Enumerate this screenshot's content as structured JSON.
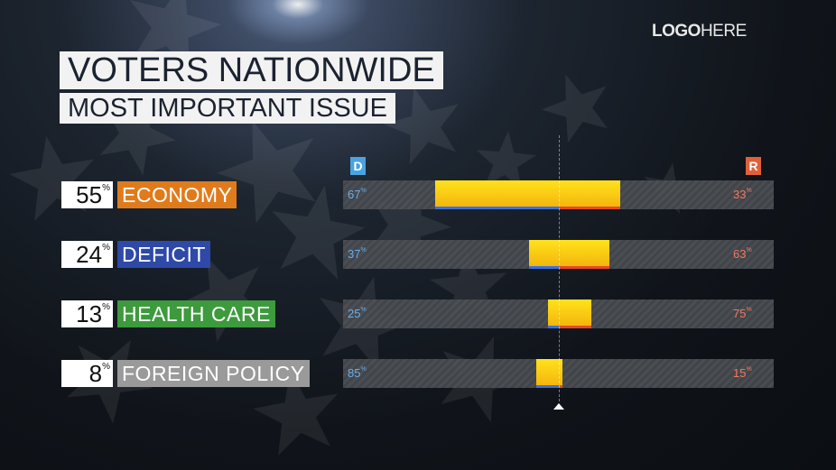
{
  "logo": {
    "part1": "LOGO",
    "part2": "HERE"
  },
  "title": "VOTERS NATIONWIDE",
  "subtitle": "MOST IMPORTANT ISSUE",
  "legend": {
    "d_label": "D",
    "r_label": "R",
    "d_color": "#4aa3df",
    "r_color": "#e0603a"
  },
  "chart_data": {
    "type": "bar",
    "title": "VOTERS NATIONWIDE",
    "subtitle": "MOST IMPORTANT ISSUE",
    "categories": [
      "ECONOMY",
      "DEFICIT",
      "HEALTH CARE",
      "FOREIGN POLICY"
    ],
    "share_percent": [
      55,
      24,
      13,
      8
    ],
    "series": [
      {
        "name": "D",
        "values": [
          67,
          37,
          25,
          85
        ]
      },
      {
        "name": "R",
        "values": [
          33,
          63,
          75,
          15
        ]
      }
    ],
    "category_colors": [
      "#e07b1c",
      "#2e49a8",
      "#3d9a3d",
      "#9a9a9a"
    ],
    "ylim": [
      0,
      100
    ]
  },
  "rows": [
    {
      "pct": "55",
      "label": "ECONOMY",
      "d": "67",
      "r": "33"
    },
    {
      "pct": "24",
      "label": "DEFICIT",
      "d": "37",
      "r": "63"
    },
    {
      "pct": "13",
      "label": "HEALTH CARE",
      "d": "25",
      "r": "75"
    },
    {
      "pct": "8",
      "label": "FOREIGN POLICY",
      "d": "85",
      "r": "15"
    }
  ],
  "pct_symbol": "%"
}
